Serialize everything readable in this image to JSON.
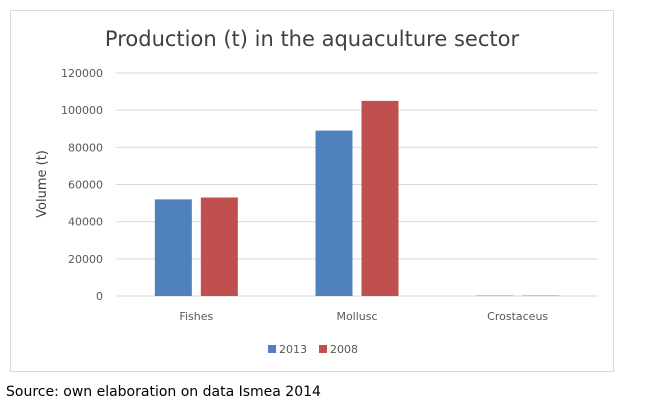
{
  "chart_data": {
    "type": "bar",
    "title": "Production (t) in the aquaculture sector",
    "xlabel": "",
    "ylabel": "Volume (t)",
    "categories": [
      "Fishes",
      "Mollusc",
      "Crostaceus"
    ],
    "series": [
      {
        "name": "2013",
        "values": [
          52000,
          89000,
          200
        ],
        "color": "#4f81bd"
      },
      {
        "name": "2008",
        "values": [
          53000,
          105000,
          200
        ],
        "color": "#c0504d"
      }
    ],
    "ylim": [
      0,
      120000
    ],
    "yticks": [
      "0",
      "20000",
      "40000",
      "60000",
      "80000",
      "100000",
      "120000"
    ],
    "grid": true,
    "legend_position": "bottom"
  },
  "caption": "Source: own elaboration on data Ismea 2014"
}
